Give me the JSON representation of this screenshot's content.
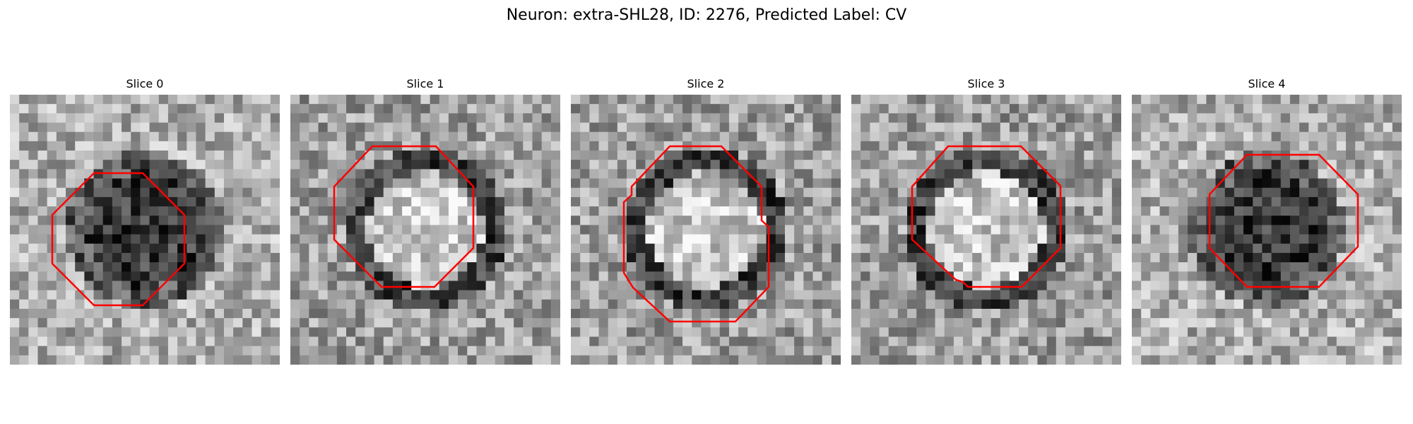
{
  "figure": {
    "title": "Neuron: extra-SHL28, ID: 2276, Predicted Label: CV"
  },
  "panels": [
    {
      "title": "Slice 0",
      "seed": 11,
      "center_light": false
    },
    {
      "title": "Slice 1",
      "seed": 23,
      "center_light": true
    },
    {
      "title": "Slice 2",
      "seed": 37,
      "center_light": true
    },
    {
      "title": "Slice 3",
      "seed": 41,
      "center_light": true
    },
    {
      "title": "Slice 4",
      "seed": 53,
      "center_light": false
    }
  ],
  "colors": {
    "contour": "#ff0000"
  }
}
